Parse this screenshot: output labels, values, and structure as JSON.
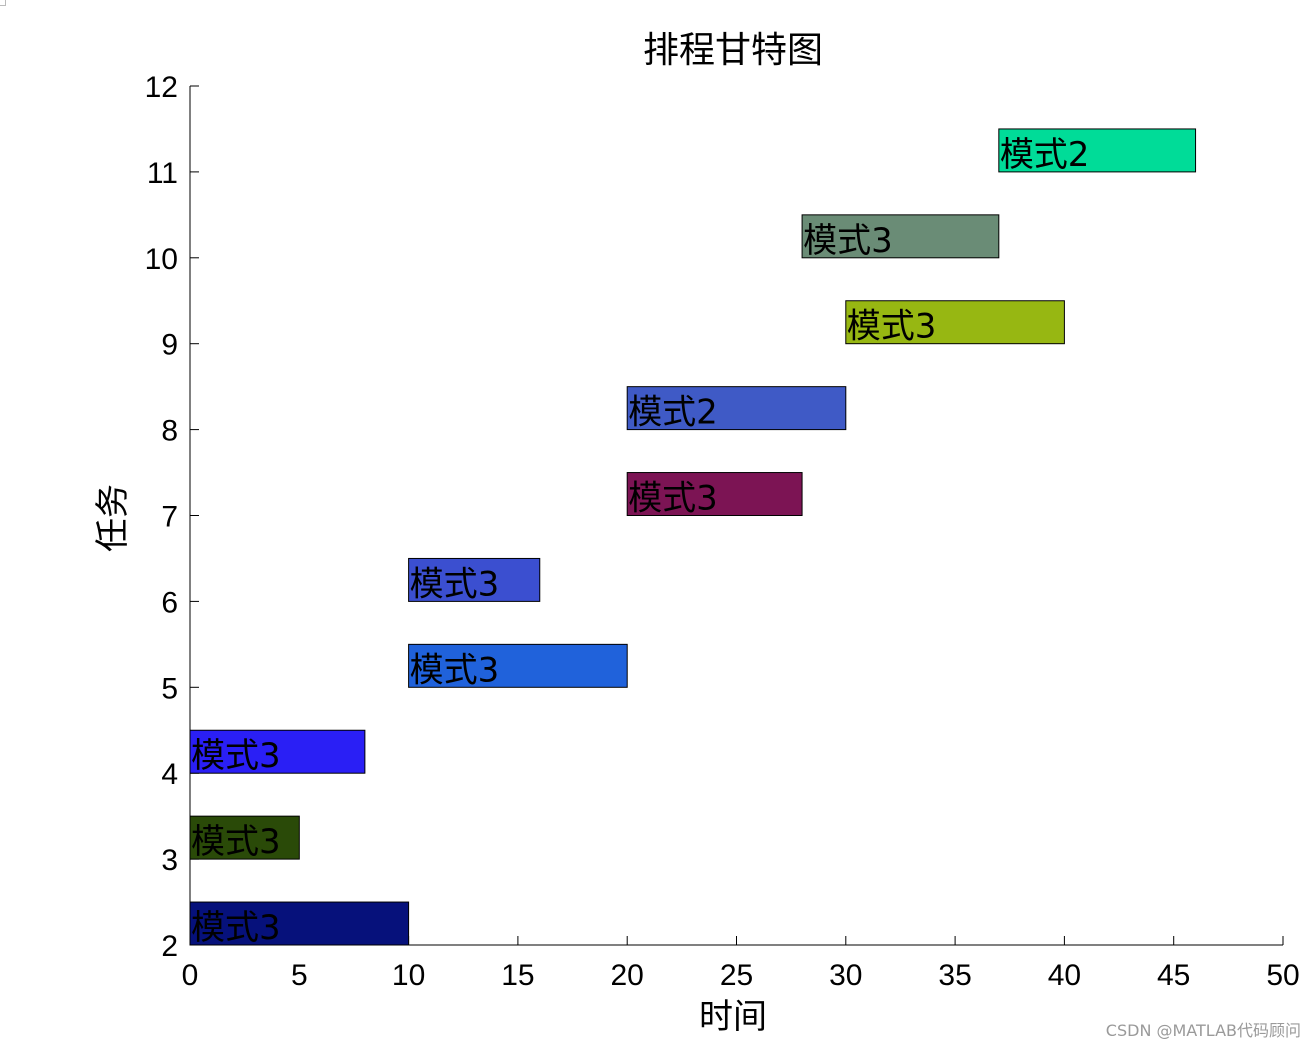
{
  "chart_data": {
    "type": "bar",
    "orientation": "horizontal-gantt",
    "title": "排程甘特图",
    "xlabel": "时间",
    "ylabel": "任务",
    "xlim": [
      0,
      50
    ],
    "ylim": [
      2,
      12
    ],
    "xticks": [
      0,
      5,
      10,
      15,
      20,
      25,
      30,
      35,
      40,
      45,
      50
    ],
    "yticks": [
      2,
      3,
      4,
      5,
      6,
      7,
      8,
      9,
      10,
      11,
      12
    ],
    "grid": false,
    "tasks": [
      {
        "task": 2,
        "start": 0,
        "end": 10,
        "label": "模式3",
        "color": "#06117b"
      },
      {
        "task": 3,
        "start": 0,
        "end": 5,
        "label": "模式3",
        "color": "#2a4a08"
      },
      {
        "task": 4,
        "start": 0,
        "end": 8,
        "label": "模式3",
        "color": "#2a1ff5"
      },
      {
        "task": 5,
        "start": 10,
        "end": 20,
        "label": "模式3",
        "color": "#2062db"
      },
      {
        "task": 6,
        "start": 10,
        "end": 16,
        "label": "模式3",
        "color": "#3b4fd0"
      },
      {
        "task": 7,
        "start": 20,
        "end": 28,
        "label": "模式3",
        "color": "#7c1454"
      },
      {
        "task": 8,
        "start": 20,
        "end": 30,
        "label": "模式2",
        "color": "#3f5ac6"
      },
      {
        "task": 9,
        "start": 30,
        "end": 40,
        "label": "模式3",
        "color": "#97b712"
      },
      {
        "task": 10,
        "start": 28,
        "end": 37,
        "label": "模式3",
        "color": "#6a8c76"
      },
      {
        "task": 11,
        "start": 37,
        "end": 46,
        "label": "模式2",
        "color": "#00dc98"
      }
    ]
  },
  "watermark": "CSDN @MATLAB代码顾问"
}
